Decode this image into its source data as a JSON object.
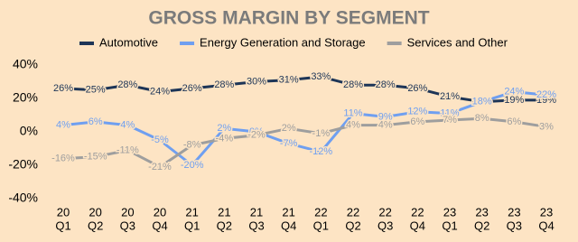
{
  "chart_data": {
    "type": "line",
    "title": "GROSS MARGIN BY SEGMENT",
    "categories": [
      [
        "20",
        "Q1"
      ],
      [
        "20",
        "Q2"
      ],
      [
        "20",
        "Q3"
      ],
      [
        "20",
        "Q4"
      ],
      [
        "21",
        "Q1"
      ],
      [
        "21",
        "Q2"
      ],
      [
        "21",
        "Q3"
      ],
      [
        "21",
        "Q4"
      ],
      [
        "22",
        "Q1"
      ],
      [
        "22",
        "Q2"
      ],
      [
        "22",
        "Q3"
      ],
      [
        "22",
        "Q4"
      ],
      [
        "23",
        "Q1"
      ],
      [
        "23",
        "Q2"
      ],
      [
        "23",
        "Q3"
      ],
      [
        "23",
        "Q4"
      ]
    ],
    "series": [
      {
        "name": "Automotive",
        "color": "#1d3557",
        "values": [
          26,
          25,
          28,
          24,
          26,
          28,
          30,
          31,
          33,
          28,
          28,
          26,
          21,
          18,
          19,
          19
        ],
        "value_labels": [
          "26%",
          "25%",
          "28%",
          "24%",
          "26%",
          "28%",
          "30%",
          "31%",
          "33%",
          "28%",
          "28%",
          "26%",
          "21%",
          "18%",
          "19%",
          "19%"
        ]
      },
      {
        "name": "Energy Generation and Storage",
        "color": "#6f9ff0",
        "values": [
          4,
          6,
          4,
          -5,
          -20,
          2,
          0,
          -7,
          -12,
          11,
          9,
          12,
          11,
          18,
          24,
          22
        ],
        "value_labels": [
          "4%",
          "6%",
          "4%",
          "-5%",
          "-20%",
          "2%",
          "0%",
          "-7%",
          "-12%",
          "11%",
          "9%",
          "12%",
          "11%",
          "18%",
          "24%",
          "22%"
        ]
      },
      {
        "name": "Services and Other",
        "color": "#9e9e9e",
        "values": [
          -16,
          -15,
          -11,
          -21,
          -8,
          -4,
          -2,
          2,
          -1,
          4,
          4,
          6,
          7,
          8,
          6,
          3
        ],
        "value_labels": [
          "-16%",
          "-15%",
          "-11%",
          "-21%",
          "-8%",
          "-4%",
          "-2%",
          "2%",
          "-1%",
          "4%",
          "4%",
          "6%",
          "7%",
          "8%",
          "6%",
          "3%"
        ]
      }
    ],
    "ylim": [
      -40,
      40
    ],
    "yticks": [
      {
        "value": -40,
        "label": "-40%"
      },
      {
        "value": -20,
        "label": "-20%"
      },
      {
        "value": 0,
        "label": "0%"
      },
      {
        "value": 20,
        "label": "20%"
      },
      {
        "value": 40,
        "label": "40%"
      }
    ],
    "legend": "top"
  }
}
